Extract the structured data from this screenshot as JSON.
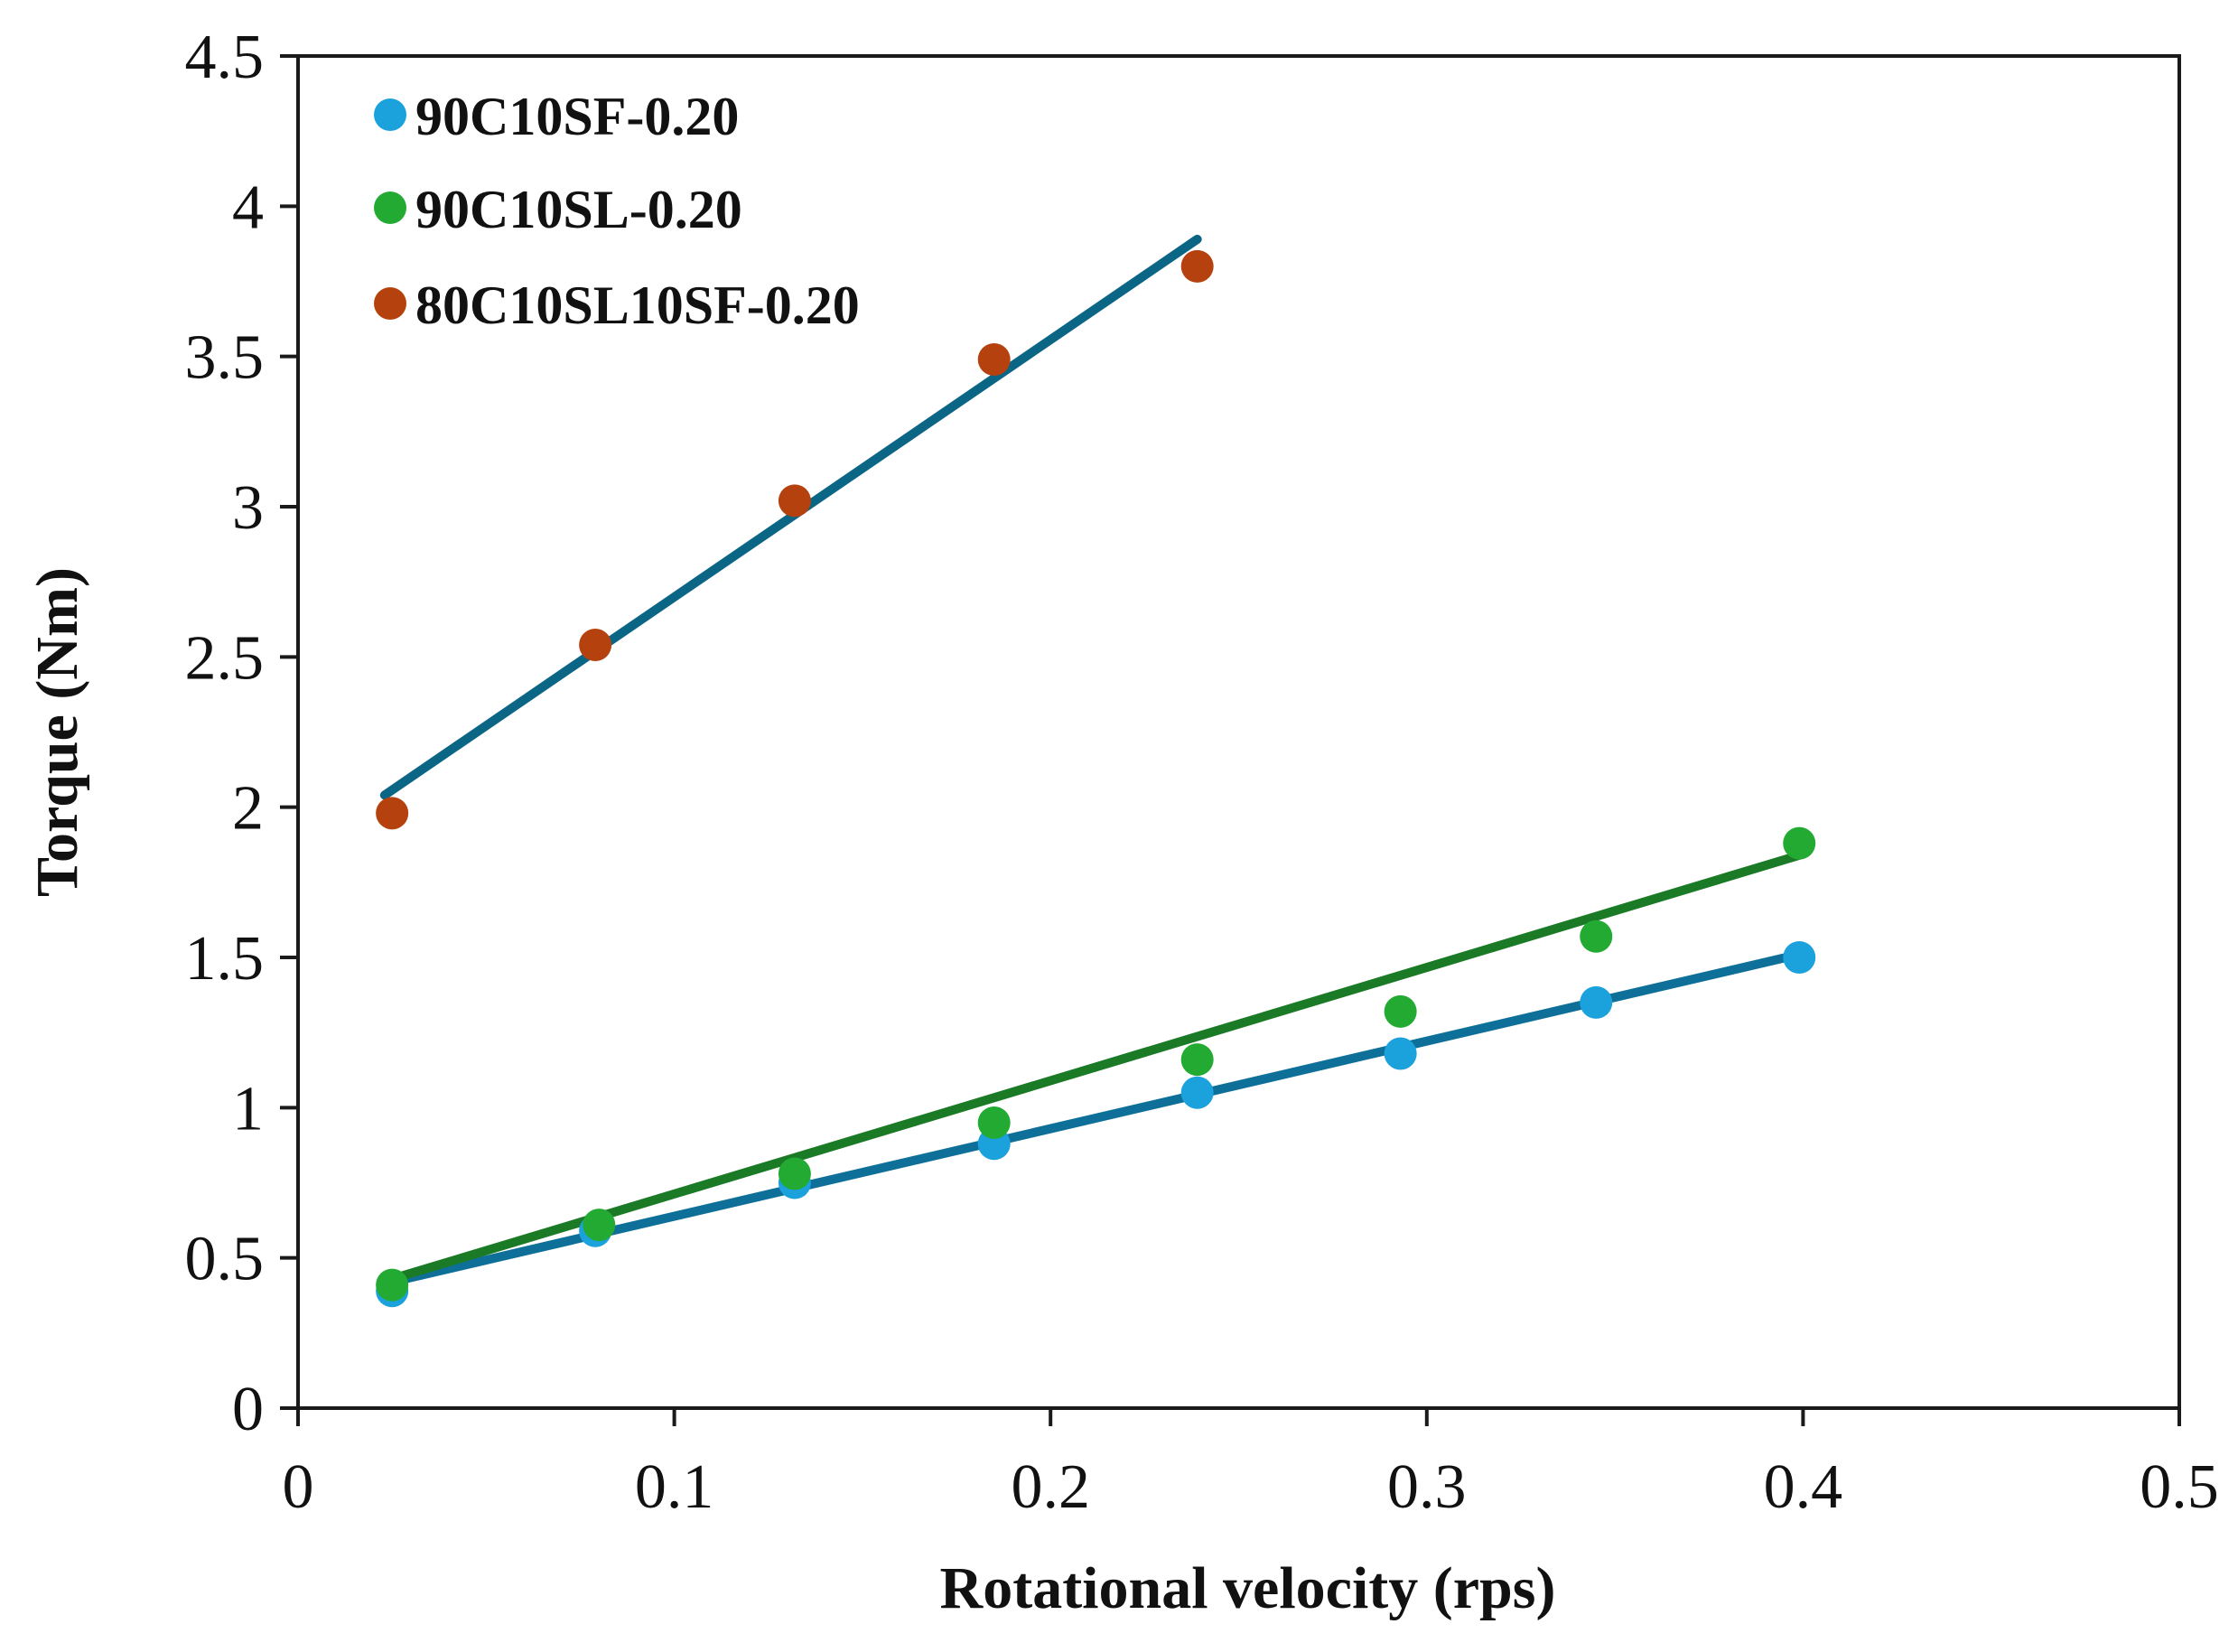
{
  "chart_data": {
    "type": "scatter",
    "title": "",
    "xlabel": "Rotational velocity (rps)",
    "ylabel": "Torque (Nm)",
    "xlim": [
      0,
      0.5
    ],
    "ylim": [
      0,
      4.5
    ],
    "x_ticks": [
      "0",
      "0.1",
      "0.2",
      "0.3",
      "0.4",
      "0.5"
    ],
    "y_ticks": [
      "0",
      "0.5",
      "1",
      "1.5",
      "2",
      "2.5",
      "3",
      "3.5",
      "4",
      "4.5"
    ],
    "grid": false,
    "legend_position": "top-left",
    "series": [
      {
        "name": "90C10SF-0.20",
        "color": "#1ba1dc",
        "points": [
          [
            0.025,
            0.39
          ],
          [
            0.079,
            0.59
          ],
          [
            0.132,
            0.75
          ],
          [
            0.185,
            0.88
          ],
          [
            0.239,
            1.05
          ],
          [
            0.293,
            1.18
          ],
          [
            0.345,
            1.35
          ],
          [
            0.399,
            1.5
          ]
        ],
        "trendline": {
          "color": "#0e6f98",
          "x": [
            0.025,
            0.399
          ],
          "y": [
            0.42,
            1.51
          ]
        }
      },
      {
        "name": "90C10SL-0.20",
        "color": "#22aa33",
        "points": [
          [
            0.025,
            0.41
          ],
          [
            0.08,
            0.61
          ],
          [
            0.132,
            0.78
          ],
          [
            0.185,
            0.95
          ],
          [
            0.239,
            1.16
          ],
          [
            0.293,
            1.32
          ],
          [
            0.345,
            1.57
          ],
          [
            0.399,
            1.88
          ]
        ],
        "trendline": {
          "color": "#1b7a26",
          "x": [
            0.025,
            0.399
          ],
          "y": [
            0.43,
            1.84
          ]
        }
      },
      {
        "name": "80C10SL10SF-0.20",
        "color": "#b5410f",
        "points": [
          [
            0.025,
            1.98
          ],
          [
            0.079,
            2.54
          ],
          [
            0.132,
            3.02
          ],
          [
            0.185,
            3.49
          ],
          [
            0.239,
            3.8
          ]
        ],
        "trendline": {
          "color": "#0b6686",
          "x": [
            0.023,
            0.239
          ],
          "y": [
            2.04,
            3.89
          ]
        }
      }
    ]
  }
}
